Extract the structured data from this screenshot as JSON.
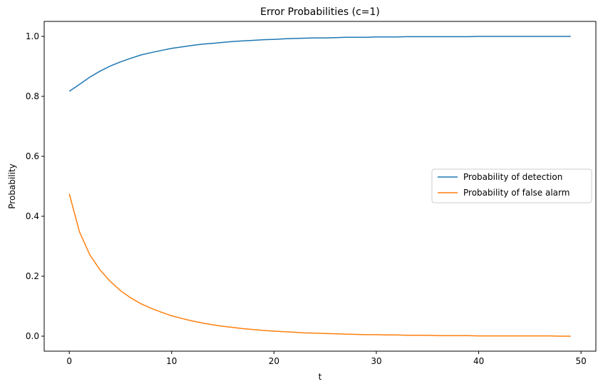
{
  "chart_data": {
    "type": "line",
    "title": "Error Probabilities (c=1)",
    "xlabel": "t",
    "ylabel": "Probability",
    "xlim": [
      -2.45,
      51.45
    ],
    "ylim": [
      -0.05,
      1.05
    ],
    "xticks": [
      0,
      10,
      20,
      30,
      40,
      50
    ],
    "yticks": [
      0.0,
      0.2,
      0.4,
      0.6,
      0.8,
      1.0
    ],
    "ytick_labels": [
      "0.0",
      "0.2",
      "0.4",
      "0.6",
      "0.8",
      "1.0"
    ],
    "grid": false,
    "legend_placement": "center-right",
    "x": [
      0,
      1,
      2,
      3,
      4,
      5,
      6,
      7,
      8,
      9,
      10,
      11,
      12,
      13,
      14,
      15,
      16,
      17,
      18,
      19,
      20,
      21,
      22,
      23,
      24,
      25,
      26,
      27,
      28,
      29,
      30,
      31,
      32,
      33,
      34,
      35,
      36,
      37,
      38,
      39,
      40,
      41,
      42,
      43,
      44,
      45,
      46,
      47,
      48,
      49
    ],
    "series": [
      {
        "name": "Probability of detection",
        "color": "#1f77b4",
        "values": [
          0.817,
          0.84,
          0.864,
          0.884,
          0.901,
          0.915,
          0.927,
          0.938,
          0.946,
          0.953,
          0.96,
          0.965,
          0.97,
          0.974,
          0.977,
          0.98,
          0.983,
          0.985,
          0.987,
          0.989,
          0.99,
          0.992,
          0.993,
          0.994,
          0.995,
          0.995,
          0.996,
          0.997,
          0.997,
          0.997,
          0.998,
          0.998,
          0.998,
          0.999,
          0.999,
          0.999,
          0.999,
          0.999,
          0.999,
          0.999,
          1.0,
          1.0,
          1.0,
          1.0,
          1.0,
          1.0,
          1.0,
          1.0,
          1.0,
          1.0
        ]
      },
      {
        "name": "Probability of false alarm",
        "color": "#ff7f0e",
        "values": [
          0.475,
          0.348,
          0.272,
          0.221,
          0.183,
          0.152,
          0.128,
          0.108,
          0.093,
          0.08,
          0.068,
          0.059,
          0.051,
          0.044,
          0.038,
          0.033,
          0.029,
          0.025,
          0.022,
          0.019,
          0.017,
          0.015,
          0.013,
          0.011,
          0.01,
          0.009,
          0.008,
          0.007,
          0.006,
          0.005,
          0.005,
          0.004,
          0.004,
          0.003,
          0.003,
          0.003,
          0.002,
          0.002,
          0.002,
          0.002,
          0.001,
          0.001,
          0.001,
          0.001,
          0.001,
          0.001,
          0.001,
          0.001,
          0.0,
          0.0
        ]
      }
    ]
  }
}
